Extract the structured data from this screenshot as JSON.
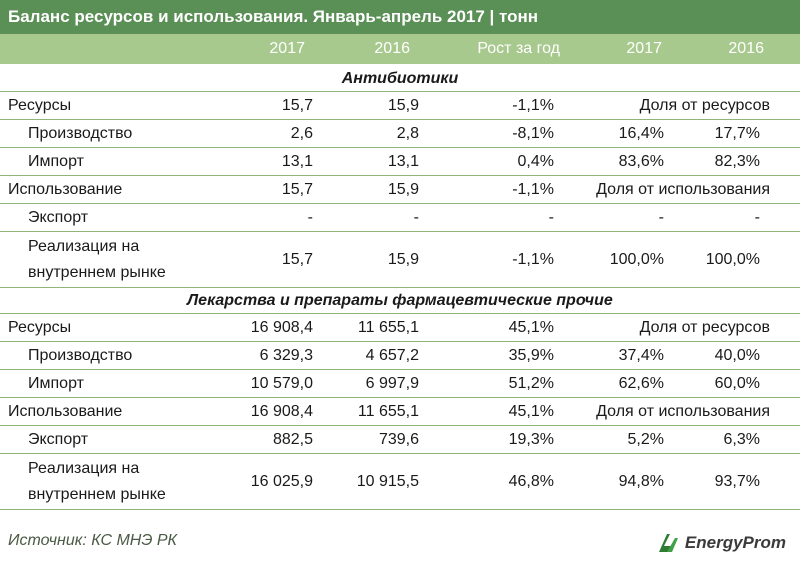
{
  "title": "Баланс ресурсов и использования. Январь-апрель 2017 | тонн",
  "header": [
    "",
    "2017",
    "2016",
    "Рост за год",
    "2017",
    "2016"
  ],
  "sections": [
    {
      "name": "Антибиотики",
      "rows": [
        {
          "label": "Ресурсы",
          "v2017": "15,7",
          "v2016": "15,9",
          "growth": "-1,1%",
          "share_label": "Доля от ресурсов"
        },
        {
          "label": "Производство",
          "v2017": "2,6",
          "v2016": "2,8",
          "growth": "-8,1%",
          "s2017": "16,4%",
          "s2016": "17,7%"
        },
        {
          "label": "Импорт",
          "v2017": "13,1",
          "v2016": "13,1",
          "growth": "0,4%",
          "s2017": "83,6%",
          "s2016": "82,3%"
        },
        {
          "label": "Использование",
          "v2017": "15,7",
          "v2016": "15,9",
          "growth": "-1,1%",
          "share_label": "Доля от использования"
        },
        {
          "label": "Экспорт",
          "v2017": "-",
          "v2016": "-",
          "growth": "-",
          "s2017": "-",
          "s2016": "-"
        },
        {
          "label": "Реализация на внутреннем рынке",
          "v2017": "15,7",
          "v2016": "15,9",
          "growth": "-1,1%",
          "s2017": "100,0%",
          "s2016": "100,0%"
        }
      ]
    },
    {
      "name": "Лекарства и препараты фармацевтические прочие",
      "rows": [
        {
          "label": "Ресурсы",
          "v2017": "16 908,4",
          "v2016": "11 655,1",
          "growth": "45,1%",
          "share_label": "Доля от ресурсов"
        },
        {
          "label": "Производство",
          "v2017": "6 329,3",
          "v2016": "4 657,2",
          "growth": "35,9%",
          "s2017": "37,4%",
          "s2016": "40,0%"
        },
        {
          "label": "Импорт",
          "v2017": "10 579,0",
          "v2016": "6 997,9",
          "growth": "51,2%",
          "s2017": "62,6%",
          "s2016": "60,0%"
        },
        {
          "label": "Использование",
          "v2017": "16 908,4",
          "v2016": "11 655,1",
          "growth": "45,1%",
          "share_label": "Доля от использования"
        },
        {
          "label": "Экспорт",
          "v2017": "882,5",
          "v2016": "739,6",
          "growth": "19,3%",
          "s2017": "5,2%",
          "s2016": "6,3%"
        },
        {
          "label": "Реализация на внутреннем рынке",
          "v2017": "16 025,9",
          "v2016": "10 915,5",
          "growth": "46,8%",
          "s2017": "94,8%",
          "s2016": "93,7%"
        }
      ]
    }
  ],
  "source": "Источник: КС МНЭ РК",
  "logo": "EnergyProm",
  "colors": {
    "title_bg": "#5a8f55",
    "header_bg": "#a8c98e",
    "border": "#8fb57a",
    "logo": "#2e7d32"
  }
}
